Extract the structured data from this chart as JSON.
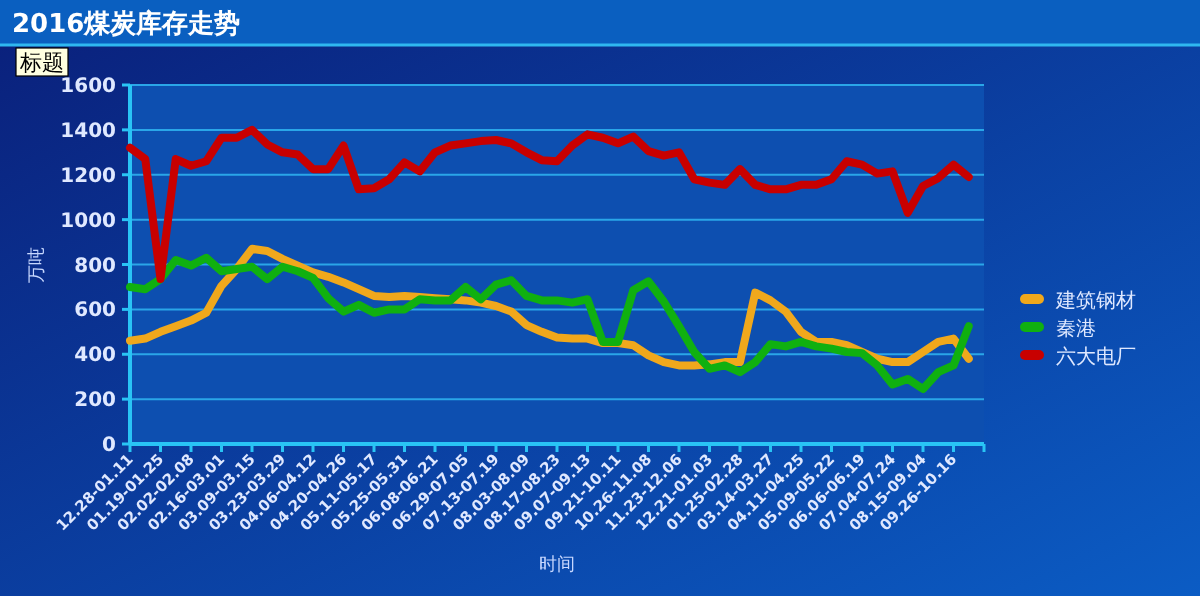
{
  "chart_data": {
    "type": "line",
    "title": "2016煤炭库存走势",
    "subtitle": "标题",
    "xlabel": "时间",
    "ylabel": "万吨",
    "categories": [
      "12.28-01.11",
      null,
      "01.19-01.25",
      null,
      "02.02-02.08",
      null,
      "02.16-03.01",
      null,
      "03.09-03.15",
      null,
      "03.23-03.29",
      null,
      "04.06-04.12",
      null,
      "04.20-04.26",
      null,
      "05.11-05.17",
      null,
      "05.25-05.31",
      null,
      "06.08-06.21",
      null,
      "06.29-07.05",
      null,
      "07.13-07.19",
      null,
      "08.03-08.09",
      null,
      "08.17-08.23",
      null,
      "09.07-09.13",
      null,
      "09.21-10.11",
      null,
      "10.26-11.08",
      null,
      "11.23-12.06",
      null,
      "12.21-01.03",
      null,
      "01.25-02.28",
      null,
      "03.14-03.27",
      null,
      "04.11-04.25",
      null,
      "05.09-05.22",
      null,
      "06.06-06.19",
      null,
      "07.04-07.24",
      null,
      "08.15-09.04",
      null,
      "09.26-10.16",
      null
    ],
    "series": [
      {
        "name": "建筑钢材",
        "color": "#f0a81c",
        "values": [
          460,
          470,
          500,
          525,
          550,
          585,
          705,
          780,
          870,
          860,
          825,
          795,
          765,
          745,
          720,
          690,
          660,
          655,
          660,
          655,
          650,
          645,
          640,
          630,
          615,
          590,
          530,
          500,
          475,
          470,
          470,
          450,
          450,
          440,
          395,
          365,
          350,
          350,
          355,
          365,
          365,
          675,
          640,
          590,
          500,
          455,
          455,
          440,
          410,
          380,
          365,
          365,
          410,
          455,
          470,
          380
        ]
      },
      {
        "name": "秦港",
        "color": "#10b010",
        "values": [
          700,
          690,
          735,
          820,
          795,
          830,
          770,
          780,
          790,
          735,
          790,
          770,
          740,
          650,
          590,
          620,
          585,
          600,
          600,
          645,
          640,
          640,
          700,
          645,
          710,
          730,
          660,
          640,
          640,
          630,
          645,
          455,
          455,
          685,
          725,
          635,
          525,
          410,
          335,
          350,
          320,
          365,
          445,
          435,
          455,
          435,
          425,
          410,
          405,
          350,
          265,
          290,
          245,
          320,
          350,
          525
        ]
      },
      {
        "name": "六大电厂",
        "color": "#c80000",
        "values": [
          1320,
          1270,
          735,
          1270,
          1240,
          1260,
          1365,
          1365,
          1400,
          1335,
          1300,
          1290,
          1225,
          1225,
          1330,
          1135,
          1140,
          1180,
          1255,
          1215,
          1300,
          1330,
          1340,
          1350,
          1355,
          1340,
          1300,
          1265,
          1260,
          1330,
          1380,
          1365,
          1340,
          1370,
          1305,
          1285,
          1300,
          1180,
          1165,
          1155,
          1225,
          1155,
          1135,
          1135,
          1155,
          1155,
          1180,
          1260,
          1245,
          1205,
          1215,
          1030,
          1150,
          1185,
          1245,
          1190
        ]
      }
    ],
    "ylim": [
      0,
      1600
    ],
    "yticks": [
      0,
      200,
      400,
      600,
      800,
      1000,
      1200,
      1400,
      1600
    ],
    "grid": "y",
    "legend": "right",
    "marker": "none",
    "line_style": "solid"
  }
}
